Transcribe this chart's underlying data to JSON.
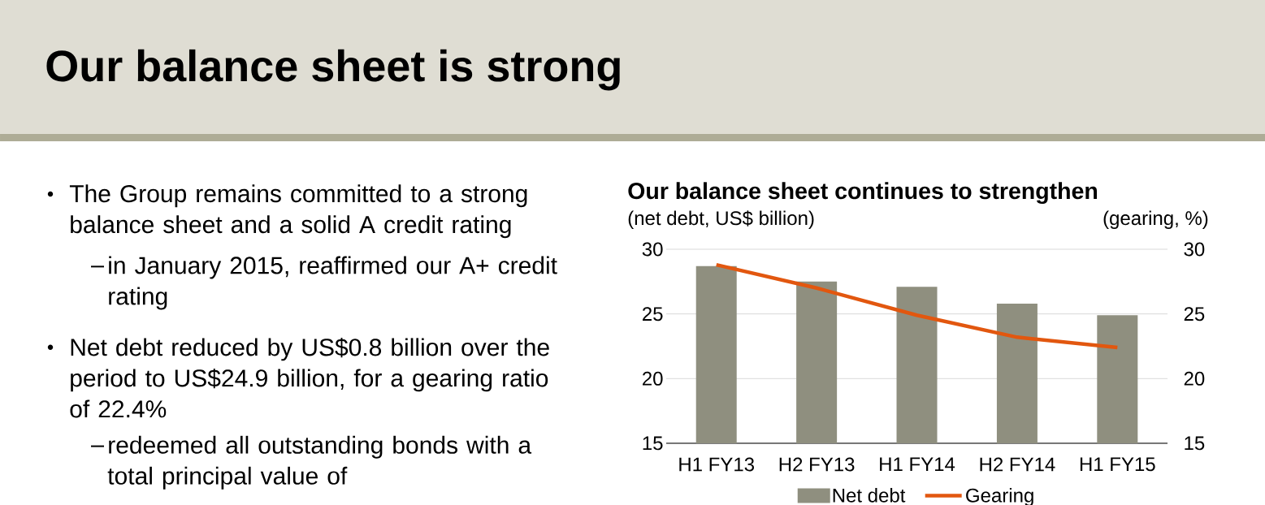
{
  "chart_data": {
    "type": "bar",
    "title": "Our balance sheet is strong",
    "subtitle": "Our balance sheet continues to strengthen",
    "ylabel": "(net debt, US$ billion)",
    "y2label": "(gearing, %)",
    "categories": [
      "H1 FY13",
      "H2 FY13",
      "H1 FY14",
      "H2 FY14",
      "H1 FY15"
    ],
    "series": [
      {
        "name": "Net debt",
        "color": "#8f8f7f",
        "values": [
          28.7,
          27.5,
          27.1,
          25.8,
          24.9
        ]
      },
      {
        "name": "Gearing",
        "type": "line",
        "axis": "y2",
        "color": "#e2570f",
        "values": [
          28.8,
          27.0,
          24.9,
          23.2,
          22.4
        ]
      }
    ],
    "ylim": [
      15,
      30
    ],
    "yticks": [
      15,
      20,
      25,
      30
    ],
    "y2lim": [
      15,
      30
    ],
    "y2ticks": [
      15,
      20,
      25,
      30
    ],
    "grid": "y",
    "legend": "bottom",
    "annotations": [
      "The Group remains committed to a strong balance sheet and a solid A credit rating",
      "in January 2015, reaffirmed our A+ credit rating",
      "Net debt reduced by US$0.8 billion over the period to US$24.9 billion, for a gearing ratio of 22.4%",
      "redeemed all outstanding bonds with a total principal value of"
    ]
  }
}
